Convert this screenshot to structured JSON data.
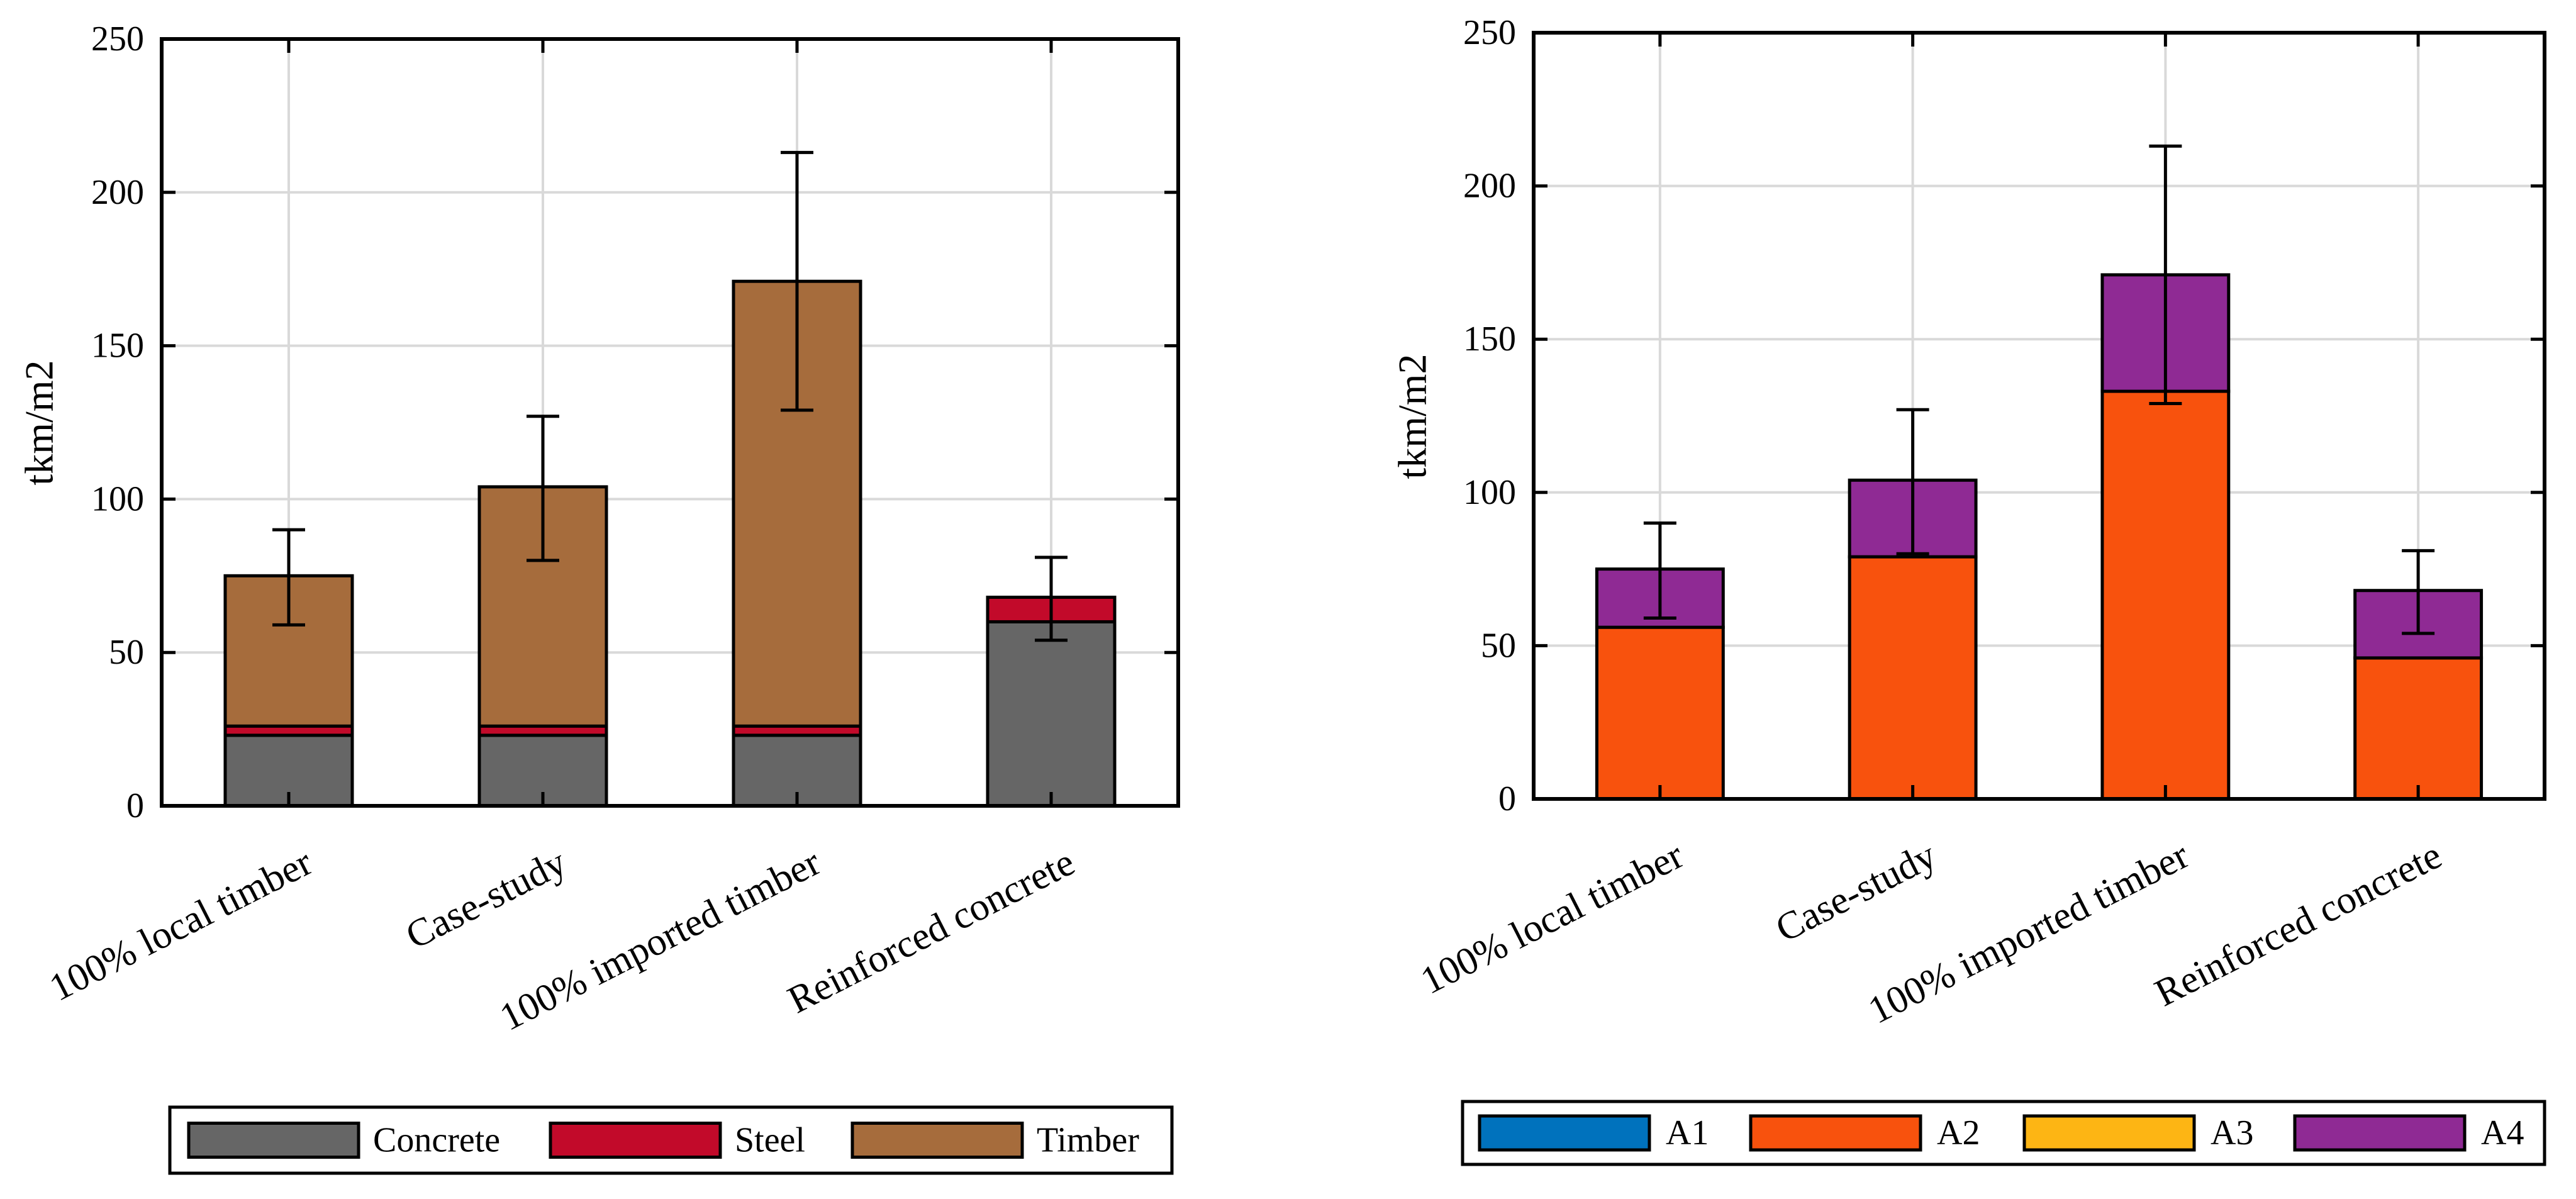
{
  "chart_data": [
    {
      "type": "bar",
      "stacked": true,
      "title": "",
      "xlabel": "",
      "ylabel": "tkm/m2",
      "ylim": [
        0,
        250
      ],
      "yticks": [
        0,
        50,
        100,
        150,
        200,
        250
      ],
      "grid": true,
      "legend_position": "bottom",
      "categories": [
        "100% local timber",
        "Case-study",
        "100% imported timber",
        "Reinforced concrete"
      ],
      "series": [
        {
          "name": "Concrete",
          "color": "#666666",
          "values": [
            23,
            23,
            23,
            60
          ]
        },
        {
          "name": "Steel",
          "color": "#c20a2a",
          "values": [
            3,
            3,
            3,
            8
          ]
        },
        {
          "name": "Timber",
          "color": "#a66c3c",
          "values": [
            49,
            78,
            145,
            0
          ]
        }
      ],
      "totals": [
        75,
        104,
        171,
        68
      ],
      "error_bars": [
        {
          "low": 59,
          "high": 90
        },
        {
          "low": 80,
          "high": 127
        },
        {
          "low": 129,
          "high": 213
        },
        {
          "low": 54,
          "high": 81
        }
      ]
    },
    {
      "type": "bar",
      "stacked": true,
      "title": "",
      "xlabel": "",
      "ylabel": "tkm/m2",
      "ylim": [
        0,
        250
      ],
      "yticks": [
        0,
        50,
        100,
        150,
        200,
        250
      ],
      "grid": true,
      "legend_position": "bottom",
      "categories": [
        "100% local timber",
        "Case-study",
        "100% imported timber",
        "Reinforced concrete"
      ],
      "series": [
        {
          "name": "A1",
          "color": "#0072bd",
          "values": [
            0,
            0,
            0,
            0
          ]
        },
        {
          "name": "A2",
          "color": "#f8520d",
          "values": [
            56,
            79,
            133,
            46
          ]
        },
        {
          "name": "A3",
          "color": "#fdb514",
          "values": [
            0,
            0,
            0,
            0
          ]
        },
        {
          "name": "A4",
          "color": "#8f2a94",
          "values": [
            19,
            25,
            38,
            22
          ]
        }
      ],
      "totals": [
        75,
        104,
        171,
        68
      ],
      "error_bars": [
        {
          "low": 59,
          "high": 90
        },
        {
          "low": 80,
          "high": 127
        },
        {
          "low": 129,
          "high": 213
        },
        {
          "low": 54,
          "high": 81
        }
      ]
    }
  ]
}
